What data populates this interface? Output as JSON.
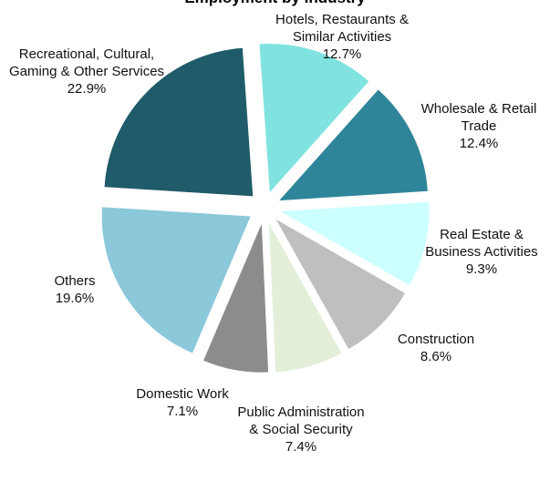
{
  "chart_data": {
    "type": "pie",
    "title": "Employment by Industry",
    "categories": [
      "Hotels, Restaurants & Similar Activities",
      "Wholesale & Retail Trade",
      "Real Estate & Business Activities",
      "Construction",
      "Public Administration & Social Security",
      "Domestic Work",
      "Others",
      "Recreational, Cultural, Gaming & Other Services"
    ],
    "values": [
      12.7,
      12.4,
      9.3,
      8.6,
      7.4,
      7.1,
      19.6,
      22.9
    ],
    "value_labels": [
      "12.7%",
      "12.4%",
      "9.3%",
      "8.6%",
      "7.4%",
      "7.1%",
      "19.6%",
      "22.9%"
    ],
    "colors": [
      "#80e3e0",
      "#2e8599",
      "#ccffff",
      "#bfbfbf",
      "#e3efd9",
      "#8c8c8c",
      "#8ac8da",
      "#205b6a"
    ]
  }
}
